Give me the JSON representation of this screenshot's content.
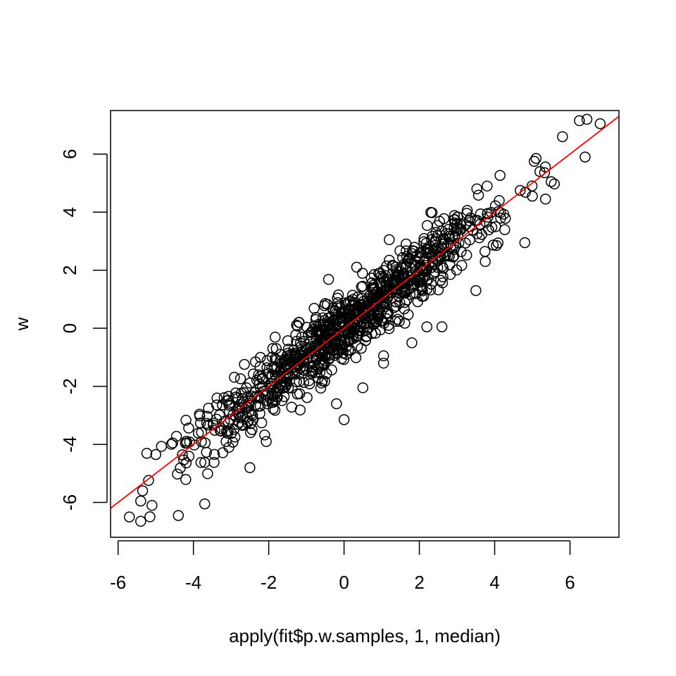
{
  "chart_data": {
    "type": "scatter",
    "title": "",
    "xlabel": "apply(fit$p.w.samples, 1, median)",
    "ylabel": "w",
    "xlim": [
      -6.2,
      7.3
    ],
    "ylim": [
      -7.2,
      7.5
    ],
    "xticks": [
      -6,
      -4,
      -2,
      0,
      2,
      4,
      6
    ],
    "yticks": [
      -6,
      -4,
      -2,
      0,
      2,
      4,
      6
    ],
    "xtick_labels": [
      "-6",
      "-4",
      "-2",
      "0",
      "2",
      "4",
      "6"
    ],
    "ytick_labels": [
      "-6",
      "-4",
      "-2",
      "0",
      "2",
      "4",
      "6"
    ],
    "grid": false,
    "point_style": "open-circle",
    "point_color": "#000000",
    "n_points": 1000,
    "highlighted_points": [
      {
        "x": -5.7,
        "y": -6.5
      },
      {
        "x": -5.4,
        "y": -6.65
      },
      {
        "x": -5.35,
        "y": -5.6
      },
      {
        "x": -5.4,
        "y": -5.95
      },
      {
        "x": -5.1,
        "y": -6.1
      },
      {
        "x": -5.0,
        "y": -4.35
      },
      {
        "x": -4.55,
        "y": -3.95
      },
      {
        "x": -4.4,
        "y": -6.45
      },
      {
        "x": -3.7,
        "y": -6.05
      },
      {
        "x": -3.6,
        "y": -2.75
      },
      {
        "x": -2.5,
        "y": -4.8
      },
      {
        "x": -1.8,
        "y": -0.7
      },
      {
        "x": -1.2,
        "y": 0.2
      },
      {
        "x": -0.5,
        "y": 0.85
      },
      {
        "x": -0.2,
        "y": -2.6
      },
      {
        "x": -0.15,
        "y": 1.15
      },
      {
        "x": 0.0,
        "y": -3.15
      },
      {
        "x": 0.5,
        "y": -2.05
      },
      {
        "x": 0.8,
        "y": 1.85
      },
      {
        "x": 1.05,
        "y": -0.95
      },
      {
        "x": 1.05,
        "y": -1.2
      },
      {
        "x": 1.2,
        "y": 3.05
      },
      {
        "x": 1.8,
        "y": -0.5
      },
      {
        "x": 2.2,
        "y": 0.05
      },
      {
        "x": 2.6,
        "y": 0.05
      },
      {
        "x": 2.6,
        "y": 3.35
      },
      {
        "x": 3.5,
        "y": 1.3
      },
      {
        "x": 3.75,
        "y": 2.3
      },
      {
        "x": 3.8,
        "y": 4.9
      },
      {
        "x": 4.8,
        "y": 2.95
      },
      {
        "x": 5.0,
        "y": 4.55
      },
      {
        "x": 5.05,
        "y": 5.75
      },
      {
        "x": 5.1,
        "y": 5.85
      },
      {
        "x": 5.2,
        "y": 5.4
      },
      {
        "x": 5.35,
        "y": 4.45
      },
      {
        "x": 5.5,
        "y": 5.05
      },
      {
        "x": 5.8,
        "y": 6.6
      },
      {
        "x": 6.25,
        "y": 7.15
      },
      {
        "x": 6.4,
        "y": 5.9
      },
      {
        "x": 6.45,
        "y": 7.2
      },
      {
        "x": 6.8,
        "y": 7.05
      }
    ],
    "point_cloud": {
      "x_range": [
        -5.7,
        6.8
      ],
      "relation": "w ≈ x with scatter",
      "noise_sd": 0.55
    },
    "reference_line": {
      "intercept": 0.0,
      "slope": 1.0,
      "color": "#ff0000"
    }
  }
}
